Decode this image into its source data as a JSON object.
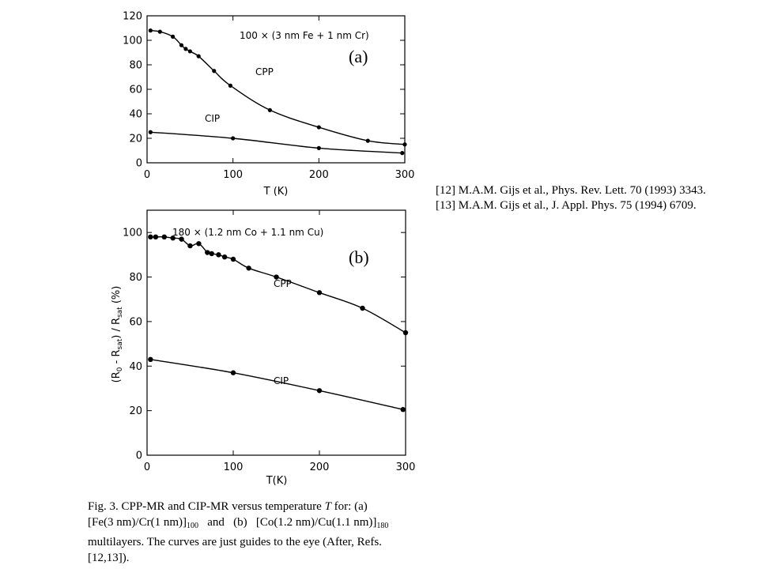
{
  "chart_data": [
    {
      "type": "line",
      "panel": "(a)",
      "annotation": "100 × (3 nm Fe + 1 nm Cr)",
      "xlabel": "T (K)",
      "ylabel": "",
      "xlim": [
        0,
        300
      ],
      "ylim": [
        0,
        120
      ],
      "xticks": [
        "0",
        "100",
        "200",
        "300"
      ],
      "yticks": [
        "0",
        "20",
        "40",
        "60",
        "80",
        "100",
        "120"
      ],
      "grid": false,
      "series": [
        {
          "name": "CPP",
          "x": [
            4,
            15,
            30,
            40,
            45,
            50,
            60,
            78,
            97,
            143,
            200,
            257,
            300
          ],
          "y": [
            108,
            107,
            103,
            96,
            93,
            91,
            87,
            75,
            63,
            43,
            29,
            18,
            15
          ]
        },
        {
          "name": "CIP",
          "x": [
            4,
            100,
            200,
            297
          ],
          "y": [
            25,
            20,
            12,
            8
          ]
        }
      ]
    },
    {
      "type": "line",
      "panel": "(b)",
      "annotation": "180 × (1.2 nm Co + 1.1 nm Cu)",
      "xlabel": "T(K)",
      "ylabel": "(R0 - Rsat) / Rsat (%)",
      "xlim": [
        0,
        300
      ],
      "ylim": [
        0,
        110
      ],
      "xticks": [
        "0",
        "100",
        "200",
        "300"
      ],
      "yticks": [
        "0",
        "20",
        "40",
        "60",
        "80",
        "100"
      ],
      "grid": false,
      "series": [
        {
          "name": "CPP",
          "x": [
            4,
            10,
            20,
            30,
            40,
            50,
            60,
            70,
            75,
            83,
            90,
            100,
            118,
            150,
            200,
            250,
            300
          ],
          "y": [
            98,
            98,
            98,
            97.5,
            97,
            94,
            95,
            91,
            90.5,
            90,
            89,
            88,
            84,
            80,
            73,
            66,
            55
          ]
        },
        {
          "name": "CIP",
          "x": [
            4,
            100,
            200,
            297
          ],
          "y": [
            43,
            37,
            29,
            20.5
          ]
        }
      ]
    }
  ],
  "references": [
    "[12]  M.A.M. Gijs et al., Phys. Rev. Lett. 70 (1993) 3343.",
    "[13]  M.A.M. Gijs et al., J. Appl. Phys. 75 (1994) 6709."
  ],
  "caption": {
    "line1_a": "Fig. 3. CPP-MR and CIP-MR versus temperature ",
    "line1_T": "T",
    "line1_b": " for: (a)",
    "line2_a": "[Fe(3 nm)/Cr(1 nm)]",
    "line2_sub1": "100",
    "line2_mid": "   and   (b)   [Co(1.2 nm)/Cu(1.1 nm)]",
    "line2_sub2": "180",
    "line3": "multilayers. The curves are just guides to the eye (After, Refs.",
    "line4": "[12,13])."
  }
}
